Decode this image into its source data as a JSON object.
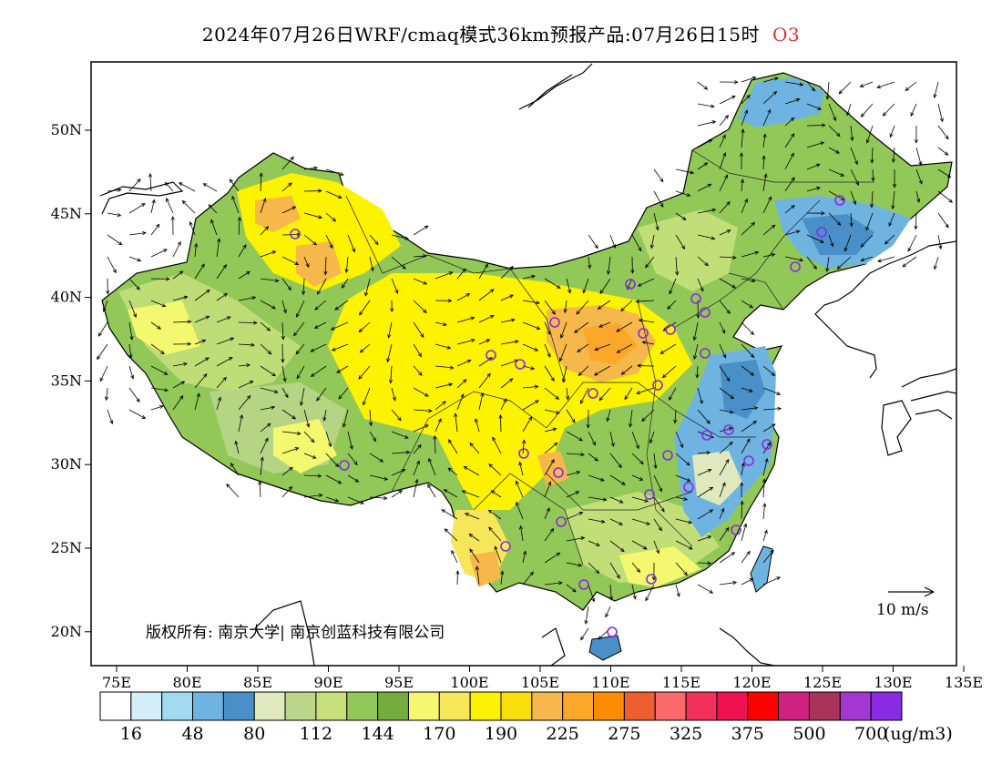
{
  "title": {
    "text": "2024年07月26日WRF/cmaq模式36km预报产品:07月26日15时",
    "pollutant": "O3"
  },
  "map": {
    "x_ticks": [
      "75E",
      "80E",
      "85E",
      "90E",
      "95E",
      "100E",
      "105E",
      "110E",
      "115E",
      "120E",
      "125E",
      "130E",
      "135E"
    ],
    "y_ticks": [
      "50N",
      "45N",
      "40N",
      "35N",
      "30N",
      "25N",
      "20N"
    ],
    "lon_range": [
      72.5,
      135
    ],
    "lat_range": [
      18,
      54
    ]
  },
  "legend": {
    "colors": [
      "#ffffff",
      "#d4eefa",
      "#a2daf2",
      "#6fb4e0",
      "#4a90c8",
      "#dfe9bd",
      "#b9d68a",
      "#c6e07c",
      "#92c858",
      "#74ad3d",
      "#f4f86e",
      "#f6e65a",
      "#fdf200",
      "#f8de0a",
      "#f6b84a",
      "#fba82a",
      "#fb8c04",
      "#ee5e2e",
      "#f9686a",
      "#f2305a",
      "#ef1050",
      "#ff0000",
      "#d02080",
      "#a83258",
      "#a238d0",
      "#8a2ae2"
    ],
    "labels": [
      "16",
      "48",
      "80",
      "112",
      "144",
      "170",
      "190",
      "225",
      "275",
      "325",
      "375",
      "500",
      "700"
    ],
    "unit": "(ug/m3)"
  },
  "wind_reference": {
    "label": "10 m/s"
  },
  "copyright": "版权所有: 南京大学| 南京创蓝科技有限公司"
}
